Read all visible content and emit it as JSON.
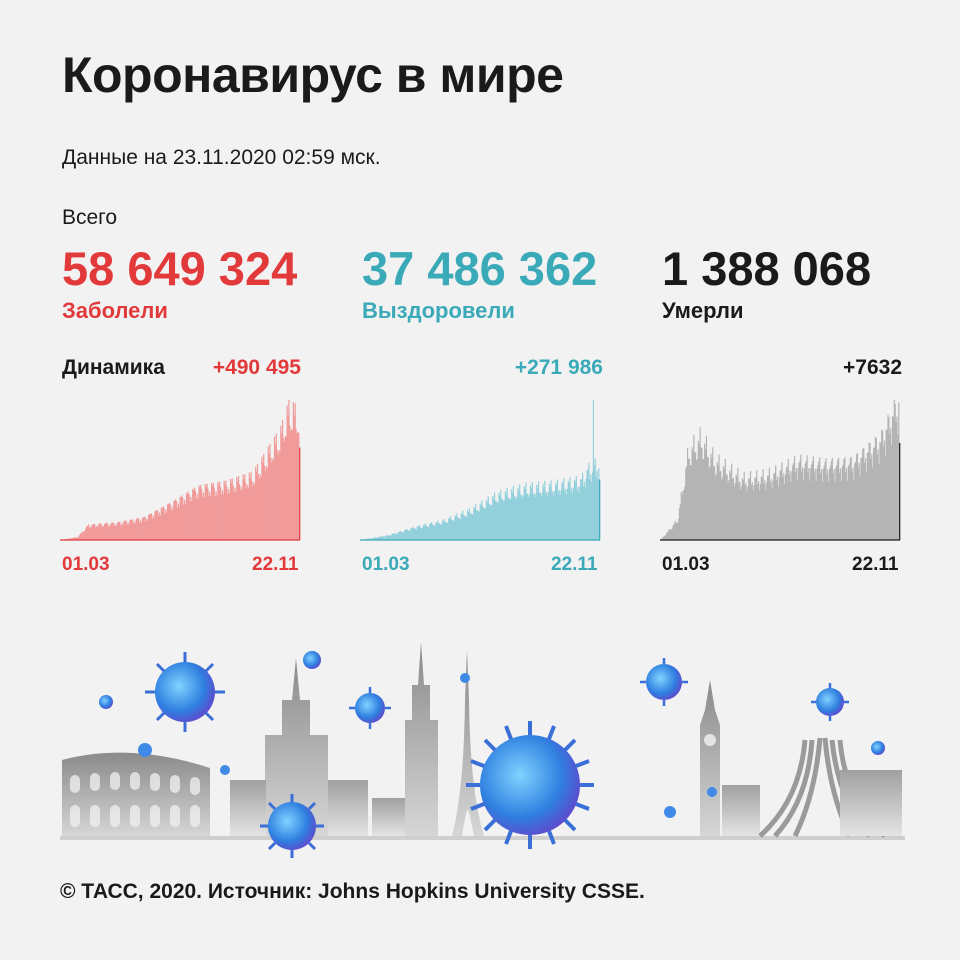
{
  "title": "Коронавирус в мире",
  "date_line": "Данные на 23.11.2020 02:59 мск.",
  "total_label": "Всего",
  "dynamics_label": "Динамика",
  "footer": "© ТАСС, 2020. Источник: Johns Hopkins University CSSE.",
  "colors": {
    "cases": "#e2393b",
    "cases_fill": "#f19a9a",
    "recovered": "#3aa9b8",
    "recovered_fill": "#92d0db",
    "deaths": "#1a1a1a",
    "deaths_fill": "#b4b4b4",
    "background": "#f2f2f2"
  },
  "stats": {
    "cases": {
      "value": "58 649 324",
      "label": "Заболели",
      "delta": "+490 495"
    },
    "recovered": {
      "value": "37 486 362",
      "label": "Выздоровели",
      "delta": "+271 986"
    },
    "deaths": {
      "value": "1 388 068",
      "label": "Умерли",
      "delta": "+7632"
    }
  },
  "illustration_icons": [
    "colosseum-icon",
    "moscow-tower-icon",
    "empire-state-icon",
    "eiffel-tower-icon",
    "big-ben-icon",
    "brasilia-cathedral-icon",
    "virus-icon"
  ],
  "chart_data": [
    {
      "type": "bar",
      "series": [
        {
          "name": "Заболели"
        }
      ],
      "x_start": "01.03",
      "x_end": "22.11",
      "x_ticks": [
        "01.03",
        "22.11"
      ],
      "anchor_points": [
        {
          "date": "01.03",
          "value": 0
        },
        {
          "date": "20.03",
          "value": 15000
        },
        {
          "date": "01.04",
          "value": 75000
        },
        {
          "date": "01.05",
          "value": 85000
        },
        {
          "date": "01.06",
          "value": 110000
        },
        {
          "date": "01.07",
          "value": 180000
        },
        {
          "date": "01.08",
          "value": 260000
        },
        {
          "date": "01.09",
          "value": 280000
        },
        {
          "date": "01.10",
          "value": 320000
        },
        {
          "date": "25.10",
          "value": 480000
        },
        {
          "date": "01.11",
          "value": 530000
        },
        {
          "date": "10.11",
          "value": 650000
        },
        {
          "date": "22.11",
          "value": 620000
        }
      ],
      "last_value": 490495
    },
    {
      "type": "bar",
      "series": [
        {
          "name": "Выздоровели"
        }
      ],
      "x_start": "01.03",
      "x_end": "22.11",
      "x_ticks": [
        "01.03",
        "22.11"
      ],
      "anchor_points": [
        {
          "date": "01.03",
          "value": 0
        },
        {
          "date": "01.04",
          "value": 20000
        },
        {
          "date": "01.05",
          "value": 55000
        },
        {
          "date": "01.06",
          "value": 80000
        },
        {
          "date": "01.07",
          "value": 125000
        },
        {
          "date": "01.08",
          "value": 190000
        },
        {
          "date": "01.09",
          "value": 220000
        },
        {
          "date": "01.10",
          "value": 230000
        },
        {
          "date": "01.11",
          "value": 250000
        },
        {
          "date": "10.11",
          "value": 300000
        },
        {
          "date": "22.11",
          "value": 330000
        }
      ],
      "peak": {
        "date": "15.11",
        "value": 630000
      },
      "last_value": 271986
    },
    {
      "type": "bar",
      "series": [
        {
          "name": "Умерли"
        }
      ],
      "x_start": "01.03",
      "x_end": "22.11",
      "x_ticks": [
        "01.03",
        "22.11"
      ],
      "anchor_points": [
        {
          "date": "01.03",
          "value": 0
        },
        {
          "date": "20.03",
          "value": 1500
        },
        {
          "date": "01.04",
          "value": 6500
        },
        {
          "date": "15.04",
          "value": 7500
        },
        {
          "date": "01.05",
          "value": 5800
        },
        {
          "date": "01.06",
          "value": 4500
        },
        {
          "date": "01.07",
          "value": 4800
        },
        {
          "date": "01.08",
          "value": 5800
        },
        {
          "date": "01.09",
          "value": 5600
        },
        {
          "date": "01.10",
          "value": 5800
        },
        {
          "date": "01.11",
          "value": 7500
        },
        {
          "date": "22.11",
          "value": 10500
        }
      ],
      "last_value": 7632
    }
  ]
}
